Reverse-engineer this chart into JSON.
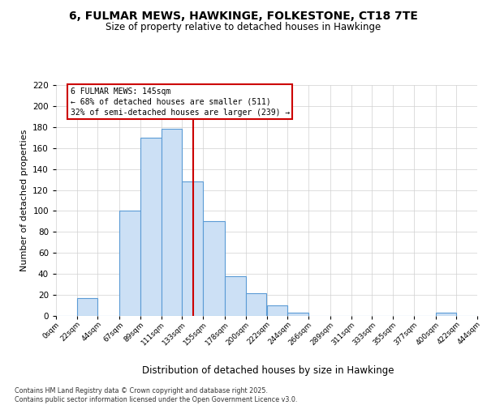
{
  "title": "6, FULMAR MEWS, HAWKINGE, FOLKESTONE, CT18 7TE",
  "subtitle": "Size of property relative to detached houses in Hawkinge",
  "xlabel": "Distribution of detached houses by size in Hawkinge",
  "ylabel": "Number of detached properties",
  "bin_edges": [
    0,
    22,
    44,
    67,
    89,
    111,
    133,
    155,
    178,
    200,
    222,
    244,
    266,
    289,
    311,
    333,
    355,
    377,
    400,
    422,
    444
  ],
  "bin_labels": [
    "0sqm",
    "22sqm",
    "44sqm",
    "67sqm",
    "89sqm",
    "111sqm",
    "133sqm",
    "155sqm",
    "178sqm",
    "200sqm",
    "222sqm",
    "244sqm",
    "266sqm",
    "289sqm",
    "311sqm",
    "333sqm",
    "355sqm",
    "377sqm",
    "400sqm",
    "422sqm",
    "444sqm"
  ],
  "counts": [
    0,
    17,
    0,
    100,
    170,
    178,
    128,
    90,
    38,
    22,
    10,
    3,
    0,
    0,
    0,
    0,
    0,
    0,
    3,
    0
  ],
  "bar_color": "#cce0f5",
  "bar_edge_color": "#5b9bd5",
  "ref_line_x": 145,
  "ref_line_color": "#cc0000",
  "annotation_line1": "6 FULMAR MEWS: 145sqm",
  "annotation_line2": "← 68% of detached houses are smaller (511)",
  "annotation_line3": "32% of semi-detached houses are larger (239) →",
  "footer_line1": "Contains HM Land Registry data © Crown copyright and database right 2025.",
  "footer_line2": "Contains public sector information licensed under the Open Government Licence v3.0.",
  "ylim": [
    0,
    220
  ],
  "yticks": [
    0,
    20,
    40,
    60,
    80,
    100,
    120,
    140,
    160,
    180,
    200,
    220
  ],
  "background_color": "#ffffff",
  "grid_color": "#d0d0d0"
}
